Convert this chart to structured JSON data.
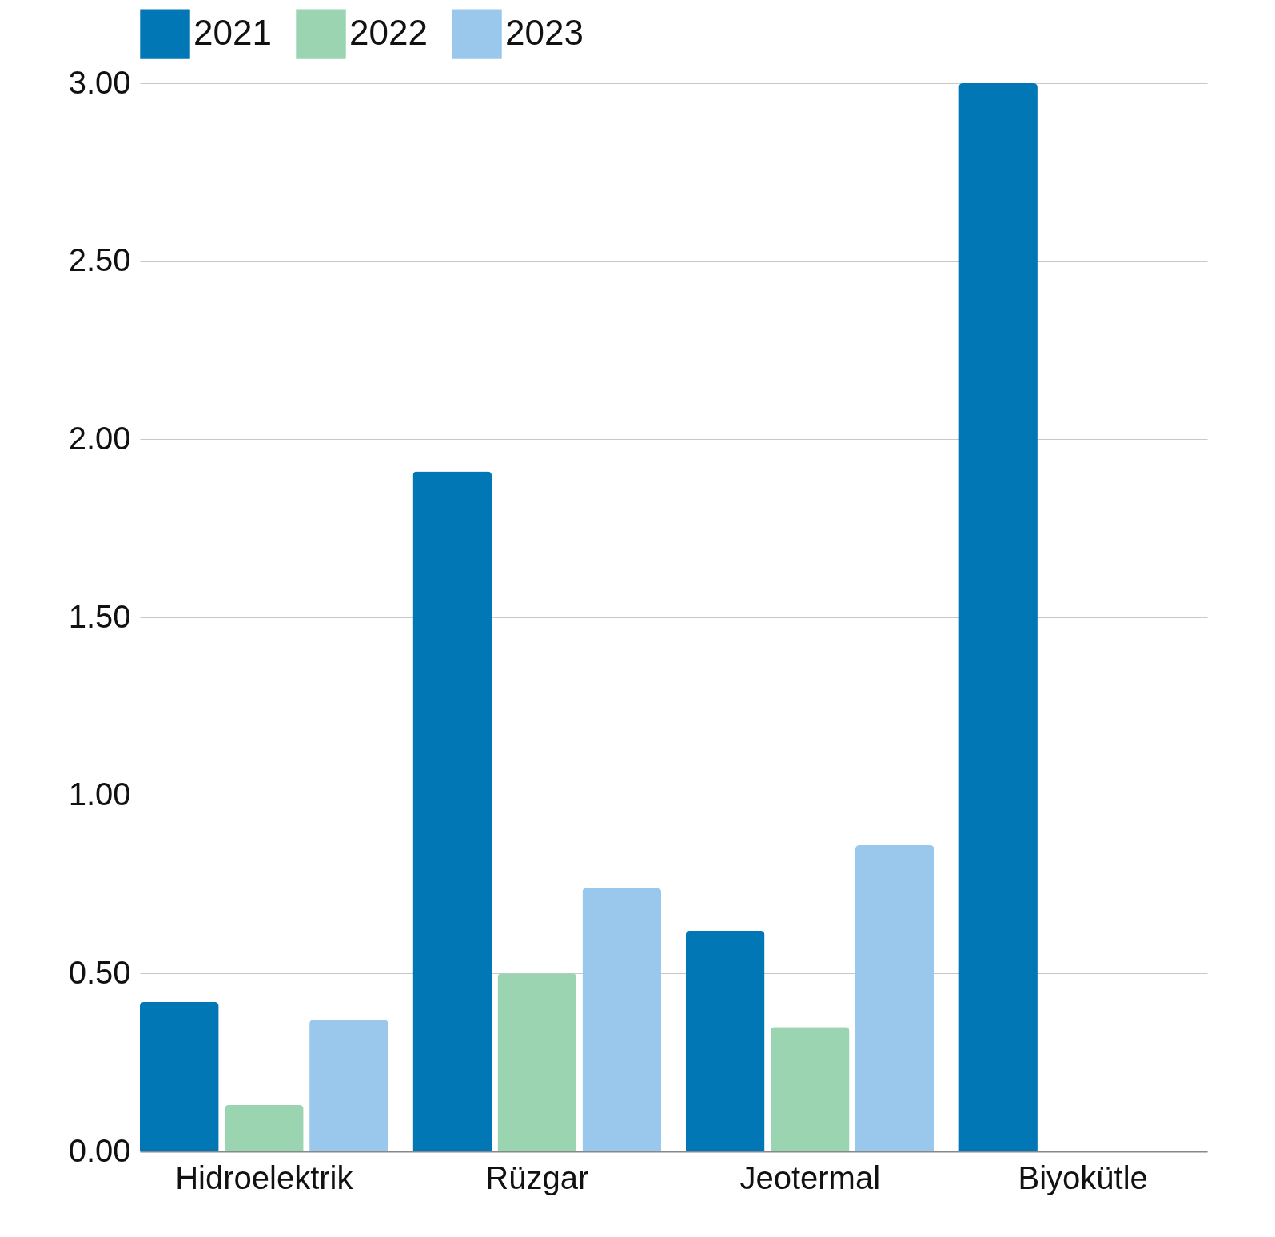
{
  "chart_data": {
    "type": "bar",
    "categories": [
      "Hidroelektrik",
      "Rüzgar",
      "Jeotermal",
      "Biyokütle"
    ],
    "series": [
      {
        "name": "2021",
        "color": "#0277b5",
        "values": [
          0.42,
          1.91,
          0.62,
          3.0
        ]
      },
      {
        "name": "2022",
        "color": "#9ad4b0",
        "values": [
          0.13,
          0.5,
          0.35,
          null
        ]
      },
      {
        "name": "2023",
        "color": "#9ac8ec",
        "values": [
          0.37,
          0.74,
          0.86,
          null
        ]
      }
    ],
    "ylim": [
      0,
      3
    ],
    "yticks": [
      {
        "value": 0,
        "label": "0.00"
      },
      {
        "value": 0.5,
        "label": "0.50"
      },
      {
        "value": 1,
        "label": "1.00"
      },
      {
        "value": 1.5,
        "label": "1.50"
      },
      {
        "value": 2,
        "label": "2.00"
      },
      {
        "value": 2.5,
        "label": "2.50"
      },
      {
        "value": 3,
        "label": "3.00"
      }
    ],
    "grid": "y",
    "legend": "top"
  }
}
